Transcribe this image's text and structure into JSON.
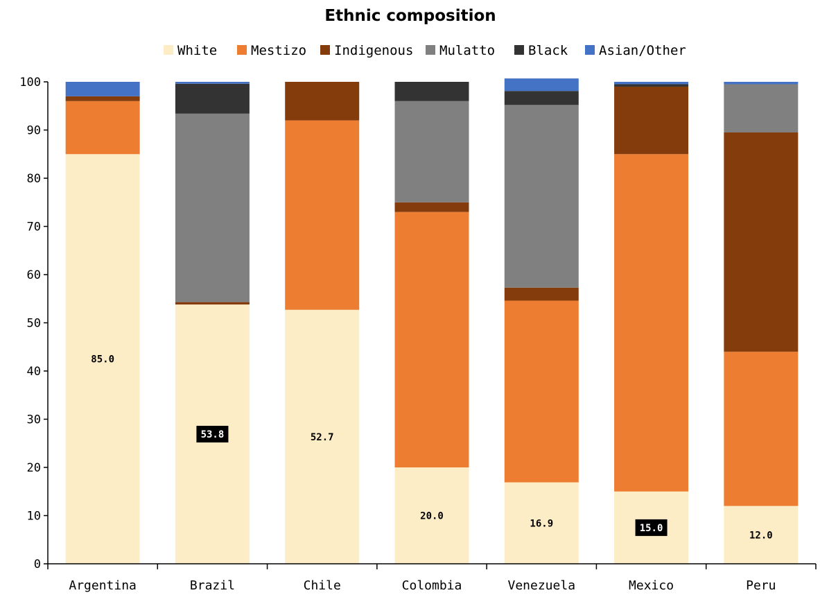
{
  "chart_data": {
    "type": "bar",
    "stacked": true,
    "title": "Ethnic composition",
    "xlabel": "",
    "ylabel": "",
    "ylim": [
      0,
      100
    ],
    "yticks": [
      0,
      10,
      20,
      30,
      40,
      50,
      60,
      70,
      80,
      90,
      100
    ],
    "grid": false,
    "legend_position": "top",
    "categories": [
      "Argentina",
      "Brazil",
      "Chile",
      "Colombia",
      "Venezuela",
      "Mexico",
      "Peru"
    ],
    "series": [
      {
        "name": "White",
        "color": "#FDEDC6",
        "values": [
          85.0,
          53.8,
          52.7,
          20.0,
          16.9,
          15.0,
          12.0
        ]
      },
      {
        "name": "Mestizo",
        "color": "#ED7D31",
        "values": [
          11.0,
          0.0,
          39.3,
          53.0,
          37.7,
          70.0,
          32.0
        ]
      },
      {
        "name": "Indigenous",
        "color": "#843C0C",
        "values": [
          1.0,
          0.5,
          8.0,
          2.0,
          2.7,
          14.0,
          45.5
        ]
      },
      {
        "name": "Mulatto",
        "color": "#808080",
        "values": [
          0.0,
          39.1,
          0.0,
          21.0,
          37.9,
          0.0,
          10.0
        ]
      },
      {
        "name": "Black",
        "color": "#333333",
        "values": [
          0.0,
          6.2,
          0.0,
          4.0,
          2.9,
          0.5,
          0.0
        ]
      },
      {
        "name": "Asian/Other",
        "color": "#4472C4",
        "values": [
          3.0,
          0.4,
          0.0,
          0.0,
          2.6,
          0.5,
          0.5
        ]
      }
    ],
    "data_labels": [
      {
        "category": "Argentina",
        "text": "85.0",
        "highlighted": false
      },
      {
        "category": "Brazil",
        "text": "53.8",
        "highlighted": true
      },
      {
        "category": "Chile",
        "text": "52.7",
        "highlighted": false
      },
      {
        "category": "Colombia",
        "text": "20.0",
        "highlighted": false
      },
      {
        "category": "Venezuela",
        "text": "16.9",
        "highlighted": false
      },
      {
        "category": "Mexico",
        "text": "15.0",
        "highlighted": true
      },
      {
        "category": "Peru",
        "text": "12.0",
        "highlighted": false
      }
    ]
  }
}
